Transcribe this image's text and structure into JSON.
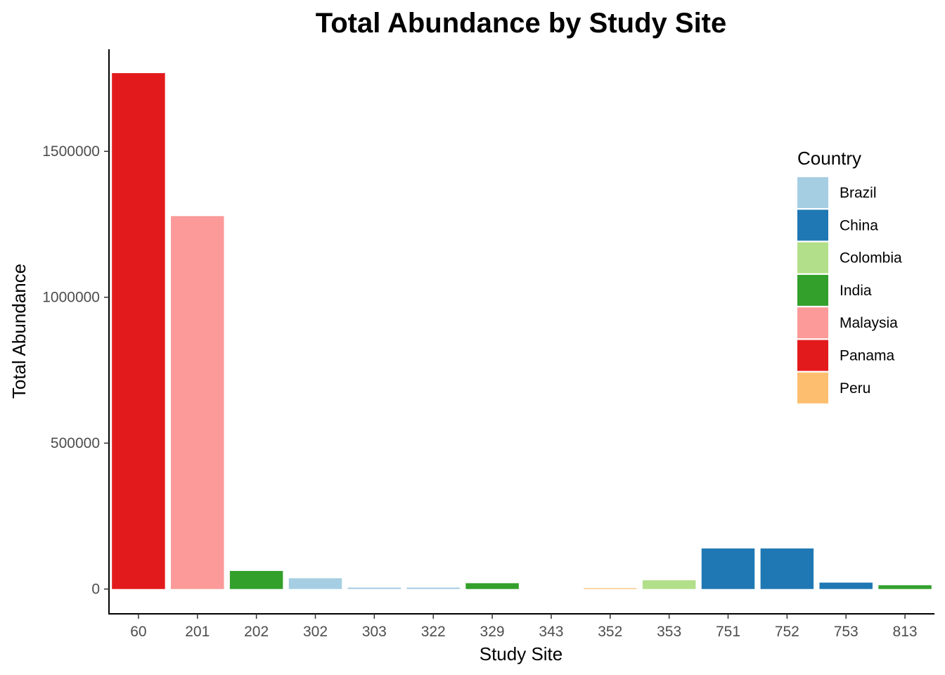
{
  "chart_data": {
    "type": "bar",
    "title": "Total Abundance by Study Site",
    "xlabel": "Study Site",
    "ylabel": "Total Abundance",
    "ylim": [
      -85000,
      1850000
    ],
    "yticks": [
      0,
      500000,
      1000000,
      1500000
    ],
    "ytick_labels": [
      "0",
      "500000",
      "1000000",
      "1500000"
    ],
    "grid": false,
    "legend_position": "right",
    "legend_title": "Country",
    "categories": [
      "60",
      "201",
      "202",
      "302",
      "303",
      "322",
      "329",
      "343",
      "352",
      "353",
      "751",
      "752",
      "753",
      "813"
    ],
    "values": [
      1768000,
      1278000,
      62000,
      37000,
      5000,
      5000,
      20000,
      0,
      3000,
      30000,
      139000,
      139000,
      22000,
      13000
    ],
    "countries": [
      "Panama",
      "Malaysia",
      "India",
      "Brazil",
      "Brazil",
      "Brazil",
      "India",
      "Peru",
      "Peru",
      "Colombia",
      "China",
      "China",
      "China",
      "India"
    ],
    "legend": [
      {
        "name": "Brazil",
        "color": "#A6CEE3"
      },
      {
        "name": "China",
        "color": "#1F78B4"
      },
      {
        "name": "Colombia",
        "color": "#B2DF8A"
      },
      {
        "name": "India",
        "color": "#33A02C"
      },
      {
        "name": "Malaysia",
        "color": "#FB9A99"
      },
      {
        "name": "Panama",
        "color": "#E31A1C"
      },
      {
        "name": "Peru",
        "color": "#FDBF6F"
      }
    ]
  }
}
